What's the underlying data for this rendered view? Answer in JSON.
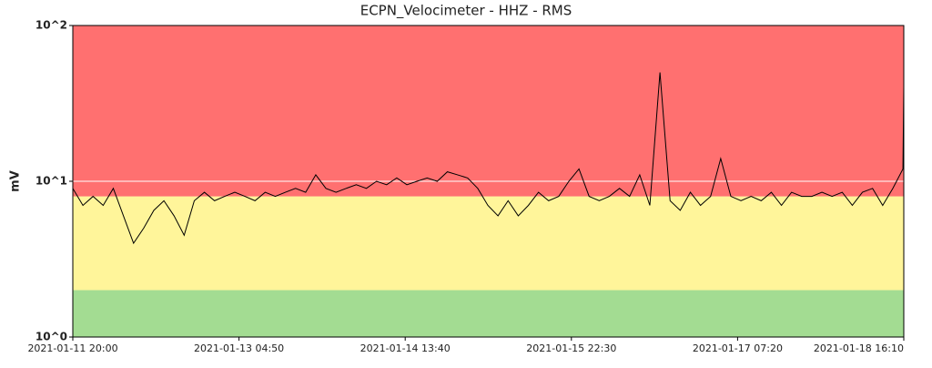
{
  "chart_data": {
    "type": "line",
    "title": "ECPN_Velocimeter - HHZ - RMS",
    "y_label": "mV",
    "log_y": true,
    "grid": true,
    "grid_color": "#ffffff",
    "bands": [
      {
        "from": 1,
        "to": 2,
        "color": "#a3dc92"
      },
      {
        "from": 2,
        "to": 8,
        "color": "#fff59a"
      },
      {
        "from": 8,
        "to": 100,
        "color": "#ff7070"
      }
    ],
    "xlim": [
      "2021-01-11 20:00",
      "2021-01-18 16:10"
    ],
    "xticks": [
      "2021-01-11 20:00",
      "2021-01-13 04:50",
      "2021-01-14 13:40",
      "2021-01-15 22:30",
      "2021-01-17 07:20",
      "2021-01-18 16:10"
    ],
    "ylim": [
      1,
      100
    ],
    "yticks": [
      {
        "value": 1,
        "label": "10^0"
      },
      {
        "value": 10,
        "label": "10^1"
      },
      {
        "value": 100,
        "label": "10^2"
      }
    ],
    "x": [
      "2021-01-11 20:00",
      "2021-01-11 22:00",
      "2021-01-12 00:00",
      "2021-01-12 02:00",
      "2021-01-12 04:00",
      "2021-01-12 06:00",
      "2021-01-12 08:00",
      "2021-01-12 10:00",
      "2021-01-12 12:00",
      "2021-01-12 14:00",
      "2021-01-12 16:00",
      "2021-01-12 18:00",
      "2021-01-12 20:00",
      "2021-01-12 22:00",
      "2021-01-13 00:00",
      "2021-01-13 02:00",
      "2021-01-13 04:00",
      "2021-01-13 06:00",
      "2021-01-13 08:00",
      "2021-01-13 10:00",
      "2021-01-13 12:00",
      "2021-01-13 14:00",
      "2021-01-13 16:00",
      "2021-01-13 18:00",
      "2021-01-13 20:00",
      "2021-01-13 22:00",
      "2021-01-14 00:00",
      "2021-01-14 02:00",
      "2021-01-14 04:00",
      "2021-01-14 06:00",
      "2021-01-14 08:00",
      "2021-01-14 10:00",
      "2021-01-14 12:00",
      "2021-01-14 14:00",
      "2021-01-14 16:00",
      "2021-01-14 18:00",
      "2021-01-14 20:00",
      "2021-01-14 22:00",
      "2021-01-15 00:00",
      "2021-01-15 02:00",
      "2021-01-15 04:00",
      "2021-01-15 06:00",
      "2021-01-15 08:00",
      "2021-01-15 10:00",
      "2021-01-15 12:00",
      "2021-01-15 14:00",
      "2021-01-15 16:00",
      "2021-01-15 18:00",
      "2021-01-15 20:00",
      "2021-01-15 22:00",
      "2021-01-16 00:00",
      "2021-01-16 02:00",
      "2021-01-16 04:00",
      "2021-01-16 06:00",
      "2021-01-16 08:00",
      "2021-01-16 10:00",
      "2021-01-16 12:00",
      "2021-01-16 14:00",
      "2021-01-16 16:00",
      "2021-01-16 18:00",
      "2021-01-16 20:00",
      "2021-01-16 22:00",
      "2021-01-17 00:00",
      "2021-01-17 02:00",
      "2021-01-17 04:00",
      "2021-01-17 06:00",
      "2021-01-17 08:00",
      "2021-01-17 10:00",
      "2021-01-17 12:00",
      "2021-01-17 14:00",
      "2021-01-17 16:00",
      "2021-01-17 18:00",
      "2021-01-17 20:00",
      "2021-01-17 22:00",
      "2021-01-18 00:00",
      "2021-01-18 02:00",
      "2021-01-18 04:00",
      "2021-01-18 06:00",
      "2021-01-18 08:00",
      "2021-01-18 10:00",
      "2021-01-18 12:00",
      "2021-01-18 14:00",
      "2021-01-18 16:00",
      "2021-01-18 16:10"
    ],
    "series": [
      {
        "color": "#000000",
        "values": [
          9,
          7,
          8,
          7,
          9,
          6,
          4,
          5,
          6.5,
          7.5,
          6,
          4.5,
          7.5,
          8.5,
          7.5,
          8,
          8.5,
          8,
          7.5,
          8.5,
          8,
          8.5,
          9,
          8.5,
          11,
          9,
          8.5,
          9,
          9.5,
          9,
          10,
          9.5,
          10.5,
          9.5,
          10,
          10.5,
          10,
          11.5,
          11,
          10.5,
          9,
          7,
          6,
          7.5,
          6,
          7,
          8.5,
          7.5,
          8,
          10,
          12,
          8,
          7.5,
          8,
          9,
          8,
          11,
          7,
          50,
          7.5,
          6.5,
          8.5,
          7,
          8,
          14,
          8,
          7.5,
          8,
          7.5,
          8.5,
          7,
          8.5,
          8,
          8,
          8.5,
          8,
          8.5,
          7,
          8.5,
          9,
          7,
          9,
          12,
          40
        ]
      }
    ]
  }
}
